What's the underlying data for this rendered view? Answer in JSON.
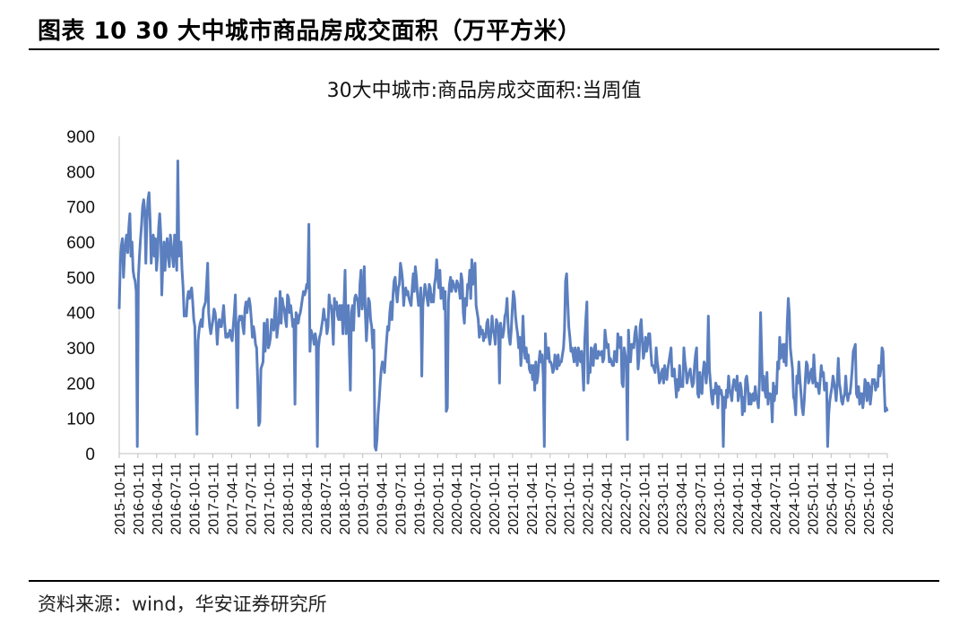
{
  "figure": {
    "title": "图表 10 30 大中城市商品房成交面积（万平方米）",
    "source": "资料来源：wind，华安证券研究所"
  },
  "chart_data": {
    "type": "line",
    "title": "30大中城市:商品房成交面积:当周值",
    "xlabel": "",
    "ylabel": "",
    "ylim": [
      0,
      900
    ],
    "yticks": [
      0,
      100,
      200,
      300,
      400,
      500,
      600,
      700,
      800,
      900
    ],
    "xticks": [
      "2015-10-11",
      "2016-01-11",
      "2016-04-11",
      "2016-07-11",
      "2016-10-11",
      "2017-01-11",
      "2017-04-11",
      "2017-07-11",
      "2017-10-11",
      "2018-01-11",
      "2018-04-11",
      "2018-07-11",
      "2018-10-11",
      "2019-01-11",
      "2019-04-11",
      "2019-07-11",
      "2019-10-11",
      "2020-01-11",
      "2020-04-11",
      "2020-07-11",
      "2020-10-11",
      "2021-01-11",
      "2021-04-11",
      "2021-07-11",
      "2021-10-11",
      "2022-01-11",
      "2022-04-11",
      "2022-07-11",
      "2022-10-11",
      "2023-01-11",
      "2023-04-11",
      "2023-07-11",
      "2023-10-11",
      "2024-01-11",
      "2024-04-11",
      "2024-07-11",
      "2024-10-11",
      "2025-01-11",
      "2025-04-11",
      "2025-07-11",
      "2025-10-11",
      "2026-01-11"
    ],
    "grid": false,
    "legend": "none",
    "color": "#5b7fbf",
    "series": [
      {
        "values": [
          410,
          540,
          590,
          610,
          500,
          560,
          600,
          620,
          570,
          640,
          680,
          560,
          600,
          520,
          500,
          490,
          460,
          20,
          500,
          560,
          610,
          650,
          700,
          720,
          690,
          540,
          660,
          720,
          740,
          660,
          540,
          600,
          620,
          560,
          610,
          520,
          560,
          640,
          680,
          620,
          450,
          540,
          600,
          520,
          580,
          610,
          560,
          530,
          620,
          590,
          560,
          530,
          620,
          600,
          520,
          830,
          560,
          590,
          600,
          520,
          470,
          390,
          400,
          390,
          440,
          460,
          440,
          460,
          470,
          430,
          380,
          360,
          200,
          55,
          320,
          350,
          370,
          380,
          360,
          410,
          420,
          430,
          480,
          540,
          400,
          360,
          340,
          360,
          380,
          410,
          400,
          370,
          310,
          360,
          380,
          360,
          360,
          390,
          420,
          370,
          330,
          340,
          330,
          340,
          350,
          330,
          320,
          360,
          400,
          450,
          310,
          130,
          370,
          390,
          380,
          390,
          360,
          340,
          410,
          430,
          400,
          430,
          440,
          420,
          380,
          330,
          360,
          340,
          310,
          300,
          210,
          80,
          90,
          240,
          250,
          260,
          370,
          290,
          340,
          380,
          300,
          310,
          330,
          380,
          360,
          350,
          400,
          440,
          330,
          360,
          380,
          460,
          370,
          440,
          420,
          410,
          380,
          360,
          450,
          440,
          400,
          420,
          390,
          360,
          380,
          140,
          400,
          390,
          370,
          390,
          400,
          420,
          440,
          460,
          450,
          460,
          480,
          470,
          650,
          290,
          350,
          340,
          330,
          310,
          340,
          320,
          20,
          300,
          330,
          340,
          360,
          380,
          410,
          380,
          380,
          340,
          360,
          450,
          420,
          420,
          380,
          310,
          440,
          410,
          430,
          390,
          380,
          420,
          380,
          420,
          340,
          420,
          520,
          340,
          380,
          420,
          300,
          180,
          400,
          420,
          350,
          440,
          450,
          440,
          430,
          390,
          480,
          520,
          410,
          440,
          530,
          400,
          320,
          380,
          440,
          430,
          380,
          360,
          300,
          350,
          20,
          10,
          40,
          110,
          150,
          200,
          240,
          260,
          250,
          230,
          280,
          320,
          360,
          350,
          400,
          430,
          380,
          450,
          490,
          500,
          460,
          430,
          470,
          480,
          540,
          520,
          490,
          420,
          460,
          470,
          450,
          460,
          440,
          430,
          420,
          470,
          510,
          460,
          530,
          500,
          450,
          420,
          430,
          470,
          220,
          420,
          450,
          480,
          460,
          440,
          420,
          480,
          470,
          430,
          450,
          430,
          480,
          500,
          550,
          500,
          470,
          520,
          440,
          460,
          470,
          410,
          460,
          120,
          130,
          430,
          480,
          500,
          460,
          490,
          480,
          470,
          460,
          490,
          480,
          470,
          440,
          510,
          490,
          400,
          370,
          440,
          420,
          480,
          470,
          520,
          440,
          550,
          480,
          500,
          540,
          420,
          400,
          380,
          330,
          360,
          340,
          350,
          320,
          340,
          330,
          370,
          380,
          330,
          310,
          340,
          390,
          350,
          340,
          310,
          380,
          370,
          350,
          200,
          370,
          340,
          330,
          350,
          390,
          400,
          440,
          370,
          330,
          310,
          350,
          410,
          460,
          440,
          390,
          360,
          340,
          300,
          330,
          250,
          290,
          390,
          310,
          270,
          300,
          260,
          280,
          240,
          230,
          250,
          210,
          250,
          180,
          260,
          200,
          220,
          260,
          290,
          260,
          280,
          220,
          20,
          340,
          280,
          270,
          300,
          260,
          260,
          250,
          230,
          240,
          280,
          270,
          240,
          280,
          250,
          260,
          260,
          280,
          300,
          350,
          490,
          510,
          430,
          360,
          330,
          290,
          300,
          280,
          260,
          300,
          280,
          250,
          300,
          280,
          260,
          290,
          240,
          180,
          320,
          380,
          430,
          200,
          250,
          230,
          300,
          280,
          250,
          300,
          310,
          270,
          270,
          290,
          280,
          280,
          290,
          260,
          270,
          350,
          320,
          300,
          310,
          260,
          270,
          260,
          250,
          250,
          290,
          270,
          260,
          340,
          320,
          300,
          330,
          200,
          190,
          300,
          280,
          260,
          40,
          350,
          280,
          260,
          310,
          310,
          300,
          340,
          360,
          320,
          240,
          270,
          360,
          380,
          320,
          270,
          290,
          330,
          290,
          310,
          340,
          340,
          290,
          250,
          250,
          240,
          230,
          300,
          260,
          240,
          200,
          210,
          230,
          240,
          200,
          250,
          220,
          210,
          240,
          260,
          280,
          300,
          220,
          220,
          240,
          200,
          160,
          210,
          180,
          250,
          190,
          200,
          190,
          300,
          260,
          240,
          200,
          220,
          230,
          240,
          210,
          190,
          200,
          250,
          280,
          300,
          170,
          160,
          230,
          180,
          170,
          230,
          260,
          250,
          200,
          240,
          390,
          240,
          200,
          160,
          140,
          180,
          170,
          200,
          190,
          130,
          190,
          170,
          180,
          160,
          20,
          160,
          130,
          180,
          160,
          220,
          180,
          170,
          150,
          190,
          210,
          200,
          180,
          220,
          150,
          170,
          200,
          180,
          110,
          160,
          120,
          210,
          220,
          190,
          140,
          170,
          140,
          160,
          170,
          150,
          190,
          160,
          150,
          130,
          210,
          400,
          290,
          180,
          220,
          180,
          160,
          230,
          140,
          170,
          170,
          160,
          90,
          200,
          150,
          190,
          170,
          260,
          240,
          330,
          270,
          290,
          310,
          260,
          310,
          250,
          370,
          440,
          400,
          300,
          270,
          240,
          160,
          150,
          110,
          220,
          200,
          260,
          210,
          170,
          130,
          110,
          150,
          210,
          260,
          250,
          200,
          210,
          230,
          240,
          200,
          280,
          220,
          190,
          200,
          190,
          170,
          210,
          250,
          220,
          230,
          180,
          200,
          200,
          20,
          110,
          150,
          170,
          190,
          220,
          200,
          180,
          150,
          200,
          270,
          200,
          180,
          150,
          140,
          160,
          170,
          220,
          170,
          150,
          170,
          170,
          200,
          240,
          290,
          300,
          310,
          170,
          160,
          190,
          140,
          170,
          170,
          130,
          160,
          210,
          200,
          150,
          200,
          190,
          140,
          170,
          210,
          200,
          210,
          180,
          200,
          190,
          250,
          220,
          240,
          300,
          290,
          200,
          120,
          130,
          120
        ]
      }
    ]
  }
}
